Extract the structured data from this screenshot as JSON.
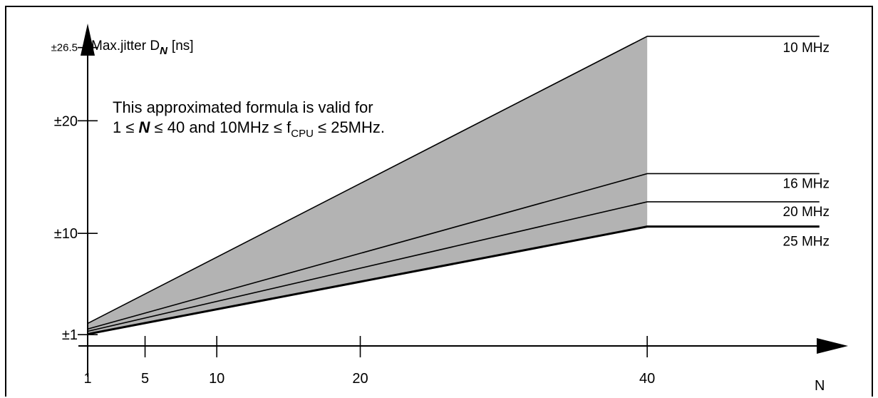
{
  "chart_data": {
    "type": "line",
    "title": "",
    "ylabel_main": "Max.jitter D",
    "ylabel_sub": "N",
    "ylabel_unit": "[ns]",
    "xlabel": "N",
    "x_ticks": [
      1,
      5,
      10,
      20,
      40
    ],
    "y_ticks": [
      {
        "value": 1,
        "label": "±1"
      },
      {
        "value": 10,
        "label": "±10"
      },
      {
        "value": 20,
        "label": "±20"
      },
      {
        "value": 26.5,
        "label": "±26.5"
      }
    ],
    "xlim": [
      0.9,
      54
    ],
    "ylim": [
      0,
      28
    ],
    "colors": {
      "fill": "#b3b3b3",
      "line": "#000000"
    },
    "shaded_region": {
      "between": [
        "10 MHz",
        "25 MHz"
      ],
      "x_range": [
        1,
        40
      ]
    },
    "series": [
      {
        "name": "10 MHz",
        "points": [
          [
            1,
            2.0
          ],
          [
            40,
            27.5
          ],
          [
            52,
            27.5
          ]
        ]
      },
      {
        "name": "16 MHz",
        "points": [
          [
            1,
            1.5
          ],
          [
            40,
            15.3
          ],
          [
            52,
            15.3
          ]
        ]
      },
      {
        "name": "20 MHz",
        "points": [
          [
            1,
            1.3
          ],
          [
            40,
            12.8
          ],
          [
            52,
            12.8
          ]
        ]
      },
      {
        "name": "25 MHz",
        "points": [
          [
            1,
            1.05
          ],
          [
            40,
            10.6
          ],
          [
            52,
            10.6
          ]
        ]
      }
    ],
    "annotation": {
      "line1": "This approximated formula is valid for",
      "line2_pre": "1 ≤ ",
      "line2_var": "N",
      "line2_mid": " ≤ 40 and 10MHz ≤ f",
      "line2_sub": "CPU",
      "line2_post": " ≤ 25MHz."
    }
  }
}
